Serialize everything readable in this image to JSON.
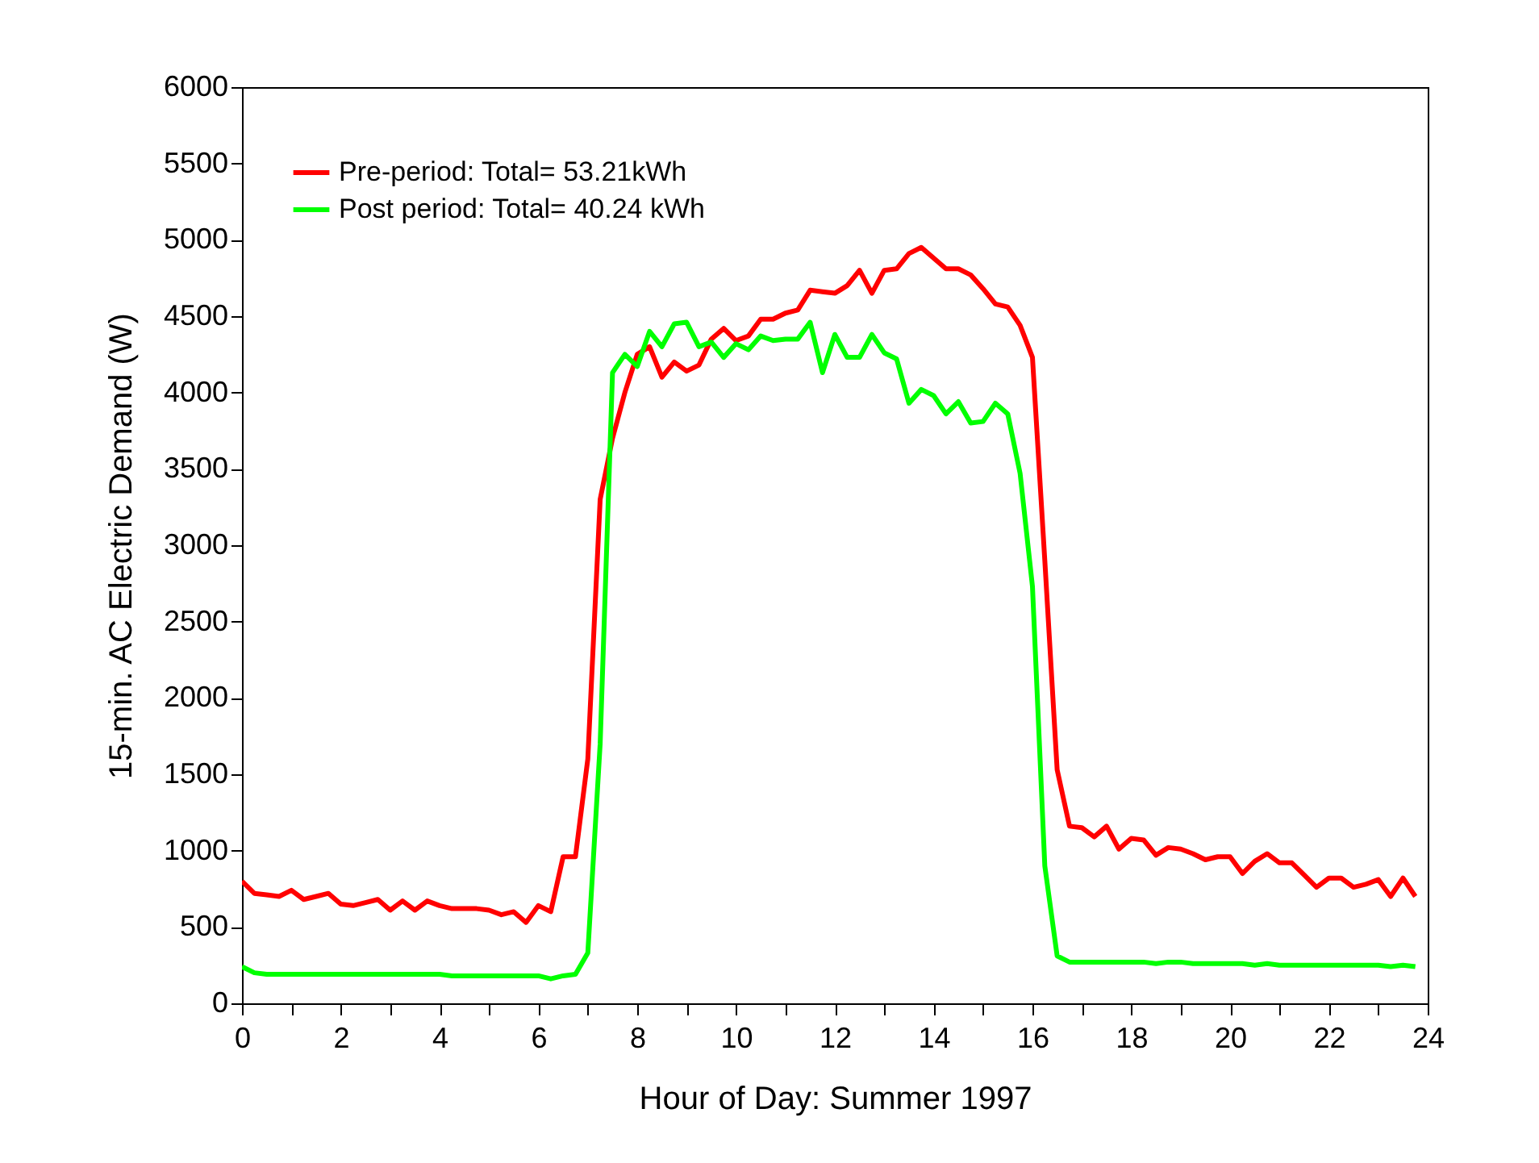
{
  "chart_data": {
    "type": "line",
    "xlabel": "Hour of Day: Summer 1997",
    "ylabel": "15-min. AC Electric Demand (W)",
    "x": [
      0,
      0.25,
      0.5,
      0.75,
      1,
      1.25,
      1.5,
      1.75,
      2,
      2.25,
      2.5,
      2.75,
      3,
      3.25,
      3.5,
      3.75,
      4,
      4.25,
      4.5,
      4.75,
      5,
      5.25,
      5.5,
      5.75,
      6,
      6.25,
      6.5,
      6.75,
      7,
      7.25,
      7.5,
      7.75,
      8,
      8.25,
      8.5,
      8.75,
      9,
      9.25,
      9.5,
      9.75,
      10,
      10.25,
      10.5,
      10.75,
      11,
      11.25,
      11.5,
      11.75,
      12,
      12.25,
      12.5,
      12.75,
      13,
      13.25,
      13.5,
      13.75,
      14,
      14.25,
      14.5,
      14.75,
      15,
      15.25,
      15.5,
      15.75,
      16,
      16.25,
      16.5,
      16.75,
      17,
      17.25,
      17.5,
      17.75,
      18,
      18.25,
      18.5,
      18.75,
      19,
      19.25,
      19.5,
      19.75,
      20,
      20.25,
      20.5,
      20.75,
      21,
      21.25,
      21.5,
      21.75,
      22,
      22.25,
      22.5,
      22.75,
      23,
      23.25,
      23.5,
      23.75
    ],
    "series": [
      {
        "name": "Pre-period: Total= 53.21kWh",
        "color": "#ff0000",
        "values": [
          800,
          720,
          710,
          700,
          740,
          680,
          700,
          720,
          650,
          640,
          660,
          680,
          610,
          670,
          610,
          670,
          640,
          620,
          620,
          620,
          610,
          580,
          600,
          530,
          640,
          600,
          960,
          960,
          1600,
          3300,
          3700,
          4000,
          4250,
          4300,
          4100,
          4200,
          4140,
          4180,
          4350,
          4420,
          4340,
          4370,
          4480,
          4480,
          4520,
          4540,
          4670,
          4660,
          4650,
          4700,
          4800,
          4650,
          4800,
          4810,
          4910,
          4950,
          4880,
          4810,
          4810,
          4770,
          4680,
          4580,
          4560,
          4440,
          4230,
          2900,
          1530,
          1160,
          1150,
          1090,
          1160,
          1010,
          1080,
          1070,
          970,
          1020,
          1010,
          980,
          940,
          960,
          960,
          850,
          930,
          980,
          920,
          920,
          840,
          760,
          820,
          820,
          760,
          780,
          810,
          700,
          820,
          700
        ]
      },
      {
        "name": "Post period: Total=  40.24 kWh",
        "color": "#00ff00",
        "values": [
          240,
          200,
          190,
          190,
          190,
          190,
          190,
          190,
          190,
          190,
          190,
          190,
          190,
          190,
          190,
          190,
          190,
          180,
          180,
          180,
          180,
          180,
          180,
          180,
          180,
          160,
          180,
          190,
          330,
          1700,
          4130,
          4250,
          4170,
          4400,
          4300,
          4450,
          4460,
          4300,
          4330,
          4230,
          4320,
          4280,
          4370,
          4340,
          4350,
          4350,
          4460,
          4130,
          4380,
          4230,
          4230,
          4380,
          4260,
          4220,
          3930,
          4020,
          3980,
          3860,
          3940,
          3800,
          3810,
          3930,
          3860,
          3470,
          2730,
          900,
          310,
          270,
          270,
          270,
          270,
          270,
          270,
          270,
          260,
          270,
          270,
          260,
          260,
          260,
          260,
          260,
          250,
          260,
          250,
          250,
          250,
          250,
          250,
          250,
          250,
          250,
          250,
          240,
          250,
          240
        ]
      }
    ],
    "xlim": [
      0,
      24
    ],
    "xticks": [
      0,
      {
        "value": 1,
        "label": null
      },
      2,
      {
        "value": 3,
        "label": null
      },
      4,
      {
        "value": 5,
        "label": null
      },
      6,
      {
        "value": 7,
        "label": null
      },
      8,
      {
        "value": 9,
        "label": null
      },
      10,
      {
        "value": 11,
        "label": null
      },
      12,
      {
        "value": 13,
        "label": null
      },
      14,
      {
        "value": 15,
        "label": null
      },
      16,
      {
        "value": 17,
        "label": null
      },
      18,
      {
        "value": 19,
        "label": null
      },
      20,
      {
        "value": 21,
        "label": null
      },
      22,
      {
        "value": 23,
        "label": null
      },
      24
    ],
    "ylim": [
      0,
      6000
    ],
    "yticks": [
      0,
      500,
      1000,
      1500,
      2000,
      2500,
      3000,
      3500,
      4000,
      4500,
      5000,
      5500,
      6000
    ],
    "legend": "top left",
    "marker": "none",
    "line_style": "solid"
  }
}
